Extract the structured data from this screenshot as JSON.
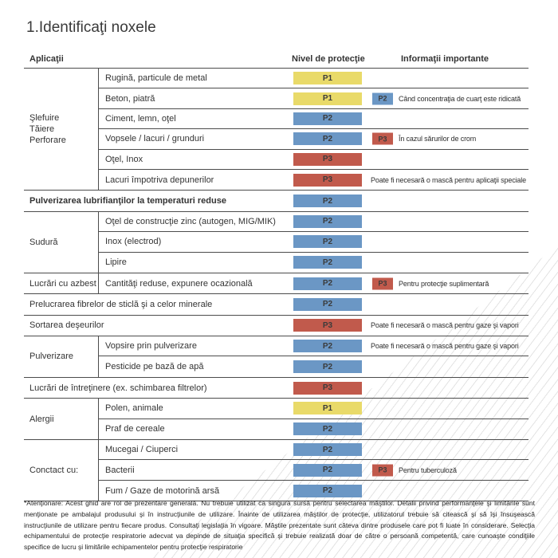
{
  "title": "1.Identificaţi noxele",
  "columns": {
    "applications": "Aplicaţii",
    "protection": "Nivel de protecţie",
    "info": "Informaţii importante"
  },
  "badge_colors": {
    "P1": "#e9da69",
    "P2": "#6b97c5",
    "P3": "#c15a4c"
  },
  "groups": [
    {
      "category": [
        "Şlefuire",
        "Tăiere",
        "Perforare"
      ],
      "rows": [
        {
          "label": "Rugină, particule de metal",
          "badge": "P1"
        },
        {
          "label": "Beton, piatră",
          "badge": "P1",
          "badge2": "P2",
          "note": "Când concentraţia de cuarţ este ridicată"
        },
        {
          "label": "Ciment, lemn, oţel",
          "badge": "P2"
        },
        {
          "label": "Vopsele / lacuri / grunduri",
          "badge": "P2",
          "badge2": "P3",
          "note": "În cazul sărurilor de crom"
        },
        {
          "label": "Oţel, Inox",
          "badge": "P3"
        },
        {
          "label": "Lacuri împotriva depunerilor",
          "badge": "P3",
          "note": "Poate fi necesară o mască pentru aplicaţii speciale"
        }
      ]
    },
    {
      "category": null,
      "rows": [
        {
          "label": "Pulverizarea lubrifianţilor la temperaturi reduse",
          "badge": "P2",
          "bold": true
        }
      ]
    },
    {
      "category": [
        "Sudură"
      ],
      "rows": [
        {
          "label": "Oţel de construcţie zinc (autogen, MIG/MIK)",
          "badge": "P2"
        },
        {
          "label": "Inox (electrod)",
          "badge": "P2"
        },
        {
          "label": "Lipire",
          "badge": "P2"
        }
      ]
    },
    {
      "category": [
        "Lucrări cu azbest"
      ],
      "rows": [
        {
          "label": "Cantităţi reduse, expunere ocazională",
          "badge": "P2",
          "badge2": "P3",
          "note": "Pentru protecţie suplimentară"
        }
      ]
    },
    {
      "category": null,
      "rows": [
        {
          "label": "Prelucrarea fibrelor de sticlă şi a celor minerale",
          "badge": "P2"
        }
      ]
    },
    {
      "category": null,
      "rows": [
        {
          "label": "Sortarea deşeurilor",
          "badge": "P3",
          "note": "Poate fi necesară o mască pentru gaze şi vapori"
        }
      ]
    },
    {
      "category": [
        "Pulverizare"
      ],
      "rows": [
        {
          "label": "Vopsire prin pulverizare",
          "badge": "P2",
          "note": "Poate fi necesară o mască pentru gaze şi vapori"
        },
        {
          "label": "Pesticide pe bază de apă",
          "badge": "P2"
        }
      ]
    },
    {
      "category": null,
      "rows": [
        {
          "label": "Lucrări de întreţinere (ex. schimbarea filtrelor)",
          "badge": "P3"
        }
      ]
    },
    {
      "category": [
        "Alergii"
      ],
      "rows": [
        {
          "label": "Polen, animale",
          "badge": "P1"
        },
        {
          "label": "Praf de cereale",
          "badge": "P2"
        }
      ]
    },
    {
      "category": [
        "Conctact cu:"
      ],
      "rows": [
        {
          "label": "Mucegai / Ciuperci",
          "badge": "P2"
        },
        {
          "label": "Bacterii",
          "badge": "P2",
          "badge2": "P3",
          "note": "Pentru tuberculoză"
        },
        {
          "label": "Fum / Gaze de motorină arsă",
          "badge": "P2"
        }
      ]
    }
  ],
  "footnote": "*Atenţionare: Acest ghid are rol de prezentare generală. Nu trebuie utilizat ca singura sursă pentru selectarea măştilor. Detalii privind performanţele şi limitările sunt menţionate pe ambalajul produsului şi în instrucţiunile de utilizare. Înainte de utilizarea măştilor de protecţie, utilizatorul trebuie să citească şi să îşi însuşească instrucţiunile de utilizare pentru fiecare produs. Consultaţi legislaţia în vigoare. Măştile prezentate sunt câteva dintre produsele care pot fi luate în considerare. Selecţia echipamentului de protecţie respiratorie adecvat va depinde de situaţia specifică şi trebuie realizată doar de către o persoană competentă, care cunoaşte condiţiile specifice de lucru şi limitările echipamentelor pentru protecţie respiratorie"
}
